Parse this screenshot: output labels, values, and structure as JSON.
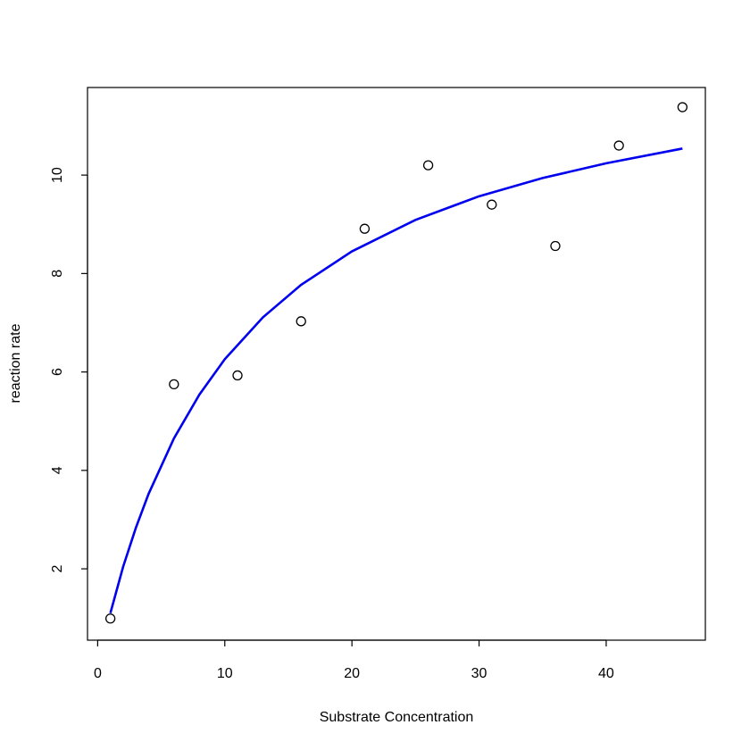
{
  "chart_data": {
    "type": "scatter",
    "xlabel": "Substrate Concentration",
    "ylabel": "reaction rate",
    "xlim": [
      -0.8,
      47.8
    ],
    "ylim": [
      0.55,
      11.78
    ],
    "xticks": [
      0,
      10,
      20,
      30,
      40
    ],
    "yticks": [
      2,
      4,
      6,
      8,
      10
    ],
    "x": [
      1,
      6,
      11,
      16,
      21,
      26,
      31,
      36,
      41,
      46
    ],
    "values": [
      0.99,
      5.75,
      5.93,
      7.03,
      8.91,
      10.2,
      9.4,
      8.56,
      10.6,
      11.38
    ],
    "color": "#000000",
    "fit": {
      "type": "line",
      "color": "#0000ee",
      "x": [
        1,
        2,
        3,
        4,
        6,
        8,
        10,
        13,
        16,
        20,
        25,
        30,
        35,
        40,
        46
      ],
      "values": [
        1.1,
        2.04,
        2.83,
        3.52,
        4.65,
        5.54,
        6.26,
        7.11,
        7.77,
        8.45,
        9.09,
        9.57,
        9.94,
        10.24,
        10.54
      ]
    }
  }
}
